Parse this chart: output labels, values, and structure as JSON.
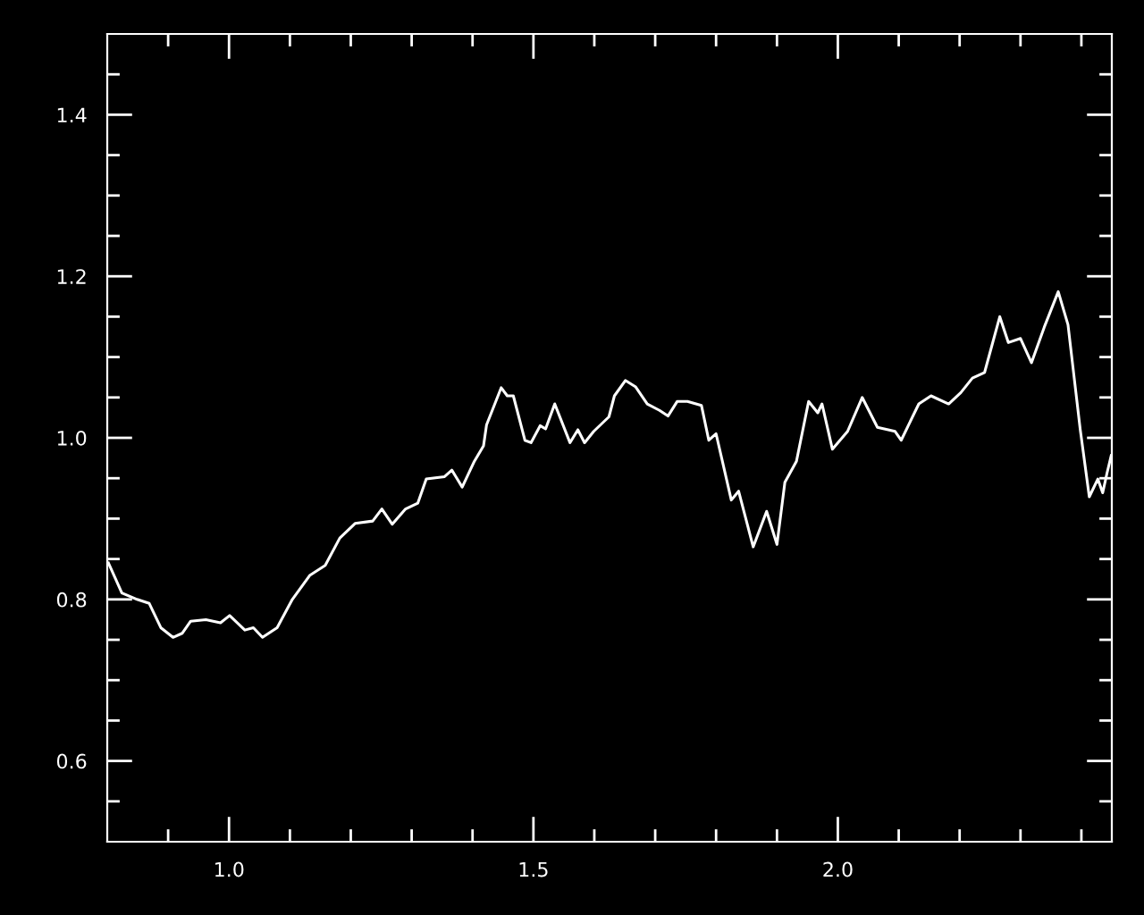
{
  "chart_data": {
    "type": "line",
    "x": [
      0.802,
      0.824,
      0.849,
      0.869,
      0.888,
      0.908,
      0.923,
      0.937,
      0.962,
      0.986,
      1.001,
      1.026,
      1.04,
      1.055,
      1.079,
      1.104,
      1.133,
      1.158,
      1.182,
      1.207,
      1.236,
      1.251,
      1.268,
      1.29,
      1.31,
      1.324,
      1.354,
      1.366,
      1.383,
      1.403,
      1.418,
      1.423,
      1.447,
      1.457,
      1.467,
      1.486,
      1.496,
      1.511,
      1.52,
      1.535,
      1.56,
      1.573,
      1.584,
      1.599,
      1.624,
      1.633,
      1.651,
      1.668,
      1.687,
      1.707,
      1.721,
      1.736,
      1.753,
      1.776,
      1.788,
      1.8,
      1.825,
      1.837,
      1.861,
      1.883,
      1.9,
      1.913,
      1.932,
      1.952,
      1.967,
      1.974,
      1.991,
      2.016,
      2.04,
      2.065,
      2.094,
      2.104,
      2.133,
      2.153,
      2.182,
      2.202,
      2.221,
      2.241,
      2.266,
      2.28,
      2.3,
      2.318,
      2.339,
      2.362,
      2.378,
      2.398,
      2.413,
      2.427,
      2.435,
      2.442,
      2.449
    ],
    "series": [
      {
        "color": "#ffffff",
        "values": [
          0.845,
          0.808,
          0.8,
          0.795,
          0.765,
          0.753,
          0.758,
          0.773,
          0.775,
          0.771,
          0.78,
          0.762,
          0.765,
          0.753,
          0.765,
          0.8,
          0.83,
          0.842,
          0.876,
          0.894,
          0.897,
          0.912,
          0.893,
          0.912,
          0.919,
          0.949,
          0.952,
          0.96,
          0.939,
          0.971,
          0.99,
          1.016,
          1.062,
          1.052,
          1.052,
          0.997,
          0.994,
          1.015,
          1.011,
          1.042,
          0.994,
          1.01,
          0.994,
          1.008,
          1.026,
          1.052,
          1.071,
          1.063,
          1.042,
          1.034,
          1.027,
          1.045,
          1.045,
          1.04,
          0.997,
          1.005,
          0.923,
          0.934,
          0.865,
          0.909,
          0.868,
          0.945,
          0.971,
          1.045,
          1.031,
          1.042,
          0.986,
          1.008,
          1.05,
          1.013,
          1.008,
          0.997,
          1.042,
          1.052,
          1.042,
          1.056,
          1.074,
          1.081,
          1.15,
          1.118,
          1.123,
          1.093,
          1.137,
          1.181,
          1.14,
          1.011,
          0.927,
          0.949,
          0.932,
          0.956,
          0.978
        ]
      }
    ],
    "xlim": [
      0.8,
      2.45
    ],
    "ylim": [
      0.5,
      1.5
    ],
    "xticks": [
      {
        "value": 0.9,
        "label": null
      },
      {
        "value": 1.0,
        "label": "1.0"
      },
      {
        "value": 1.1,
        "label": null
      },
      {
        "value": 1.2,
        "label": null
      },
      {
        "value": 1.3,
        "label": null
      },
      {
        "value": 1.4,
        "label": null
      },
      {
        "value": 1.5,
        "label": "1.5"
      },
      {
        "value": 1.6,
        "label": null
      },
      {
        "value": 1.7,
        "label": null
      },
      {
        "value": 1.8,
        "label": null
      },
      {
        "value": 1.9,
        "label": null
      },
      {
        "value": 2.0,
        "label": "2.0"
      },
      {
        "value": 2.1,
        "label": null
      },
      {
        "value": 2.2,
        "label": null
      },
      {
        "value": 2.3,
        "label": null
      },
      {
        "value": 2.4,
        "label": null
      }
    ],
    "yticks": [
      {
        "value": 0.55,
        "label": null
      },
      {
        "value": 0.6,
        "label": "0.6"
      },
      {
        "value": 0.65,
        "label": null
      },
      {
        "value": 0.7,
        "label": null
      },
      {
        "value": 0.75,
        "label": null
      },
      {
        "value": 0.8,
        "label": "0.8"
      },
      {
        "value": 0.85,
        "label": null
      },
      {
        "value": 0.9,
        "label": null
      },
      {
        "value": 0.95,
        "label": null
      },
      {
        "value": 1.0,
        "label": "1.0"
      },
      {
        "value": 1.05,
        "label": null
      },
      {
        "value": 1.1,
        "label": null
      },
      {
        "value": 1.15,
        "label": null
      },
      {
        "value": 1.2,
        "label": "1.2"
      },
      {
        "value": 1.25,
        "label": null
      },
      {
        "value": 1.3,
        "label": null
      },
      {
        "value": 1.35,
        "label": null
      },
      {
        "value": 1.4,
        "label": "1.4"
      },
      {
        "value": 1.45,
        "label": null
      }
    ],
    "grid": false,
    "legend": false,
    "marker": "none",
    "line_style": "solid"
  }
}
